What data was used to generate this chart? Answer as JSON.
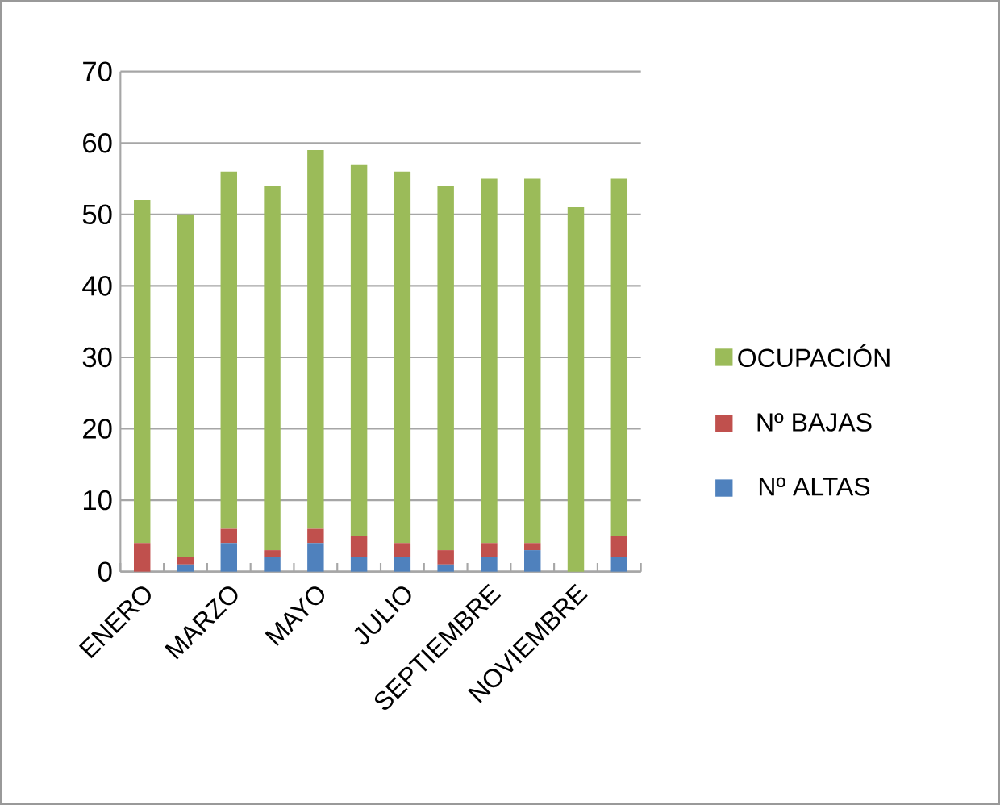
{
  "chart_data": {
    "type": "bar",
    "stacked": true,
    "categories": [
      "ENERO",
      null,
      "MARZO",
      null,
      "MAYO",
      null,
      "JULIO",
      null,
      "SEPTIEMBRE",
      null,
      "NOVIEMBRE",
      null
    ],
    "series": [
      {
        "name": "Nº ALTAS",
        "color": "#4f81bd",
        "values": [
          0,
          1,
          4,
          2,
          4,
          2,
          2,
          1,
          2,
          3,
          0,
          2
        ]
      },
      {
        "name": "Nº BAJAS",
        "color": "#c0504d",
        "values": [
          4,
          1,
          2,
          1,
          2,
          3,
          2,
          2,
          2,
          1,
          0,
          3
        ]
      },
      {
        "name": "OCUPACIÓN",
        "color": "#9bbb59",
        "values": [
          48,
          48,
          50,
          51,
          53,
          52,
          52,
          51,
          51,
          51,
          51,
          50
        ]
      }
    ],
    "ylim": [
      0,
      70
    ],
    "yticks": [
      0,
      10,
      20,
      30,
      40,
      50,
      60,
      70
    ],
    "grid": "y",
    "legend": "right"
  }
}
